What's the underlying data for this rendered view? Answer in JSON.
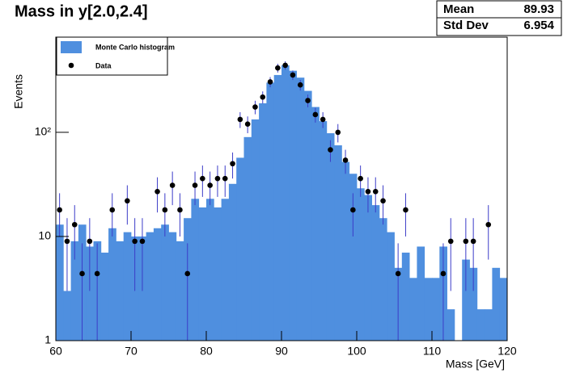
{
  "chart_data": {
    "type": "histogram",
    "title": "Mass in y[2.0,2.4]",
    "xlabel": "Mass [GeV]",
    "ylabel": "Events",
    "log_y": true,
    "xlim": [
      60,
      120
    ],
    "ylim": [
      1,
      820
    ],
    "xticks": [
      60,
      70,
      80,
      90,
      100,
      110,
      120
    ],
    "yticks": [
      1,
      10,
      {
        "value": 100,
        "label": "10²"
      }
    ],
    "legend": "top-left",
    "stats": {
      "rows": [
        [
          "Mean",
          "89.93"
        ],
        [
          "Std Dev",
          "6.954"
        ]
      ]
    },
    "bins": [
      60,
      61,
      62,
      63,
      64,
      65,
      66,
      67,
      68,
      69,
      70,
      71,
      72,
      73,
      74,
      75,
      76,
      77,
      78,
      79,
      80,
      81,
      82,
      83,
      84,
      85,
      86,
      87,
      88,
      89,
      90,
      91,
      92,
      93,
      94,
      95,
      96,
      97,
      98,
      99,
      100,
      101,
      102,
      103,
      104,
      105,
      106,
      107,
      108,
      109,
      110,
      111,
      112,
      113,
      114,
      115,
      116,
      117,
      118,
      119,
      120
    ],
    "series": [
      {
        "name": "Monte Carlo histogram",
        "color": "#4f8fdf",
        "values": [
          13,
          3,
          9,
          13,
          8,
          9,
          7,
          12,
          9,
          11,
          10,
          10,
          11,
          12,
          13,
          11,
          9,
          15,
          23,
          19,
          23,
          19,
          23,
          32,
          57,
          90,
          133,
          190,
          300,
          355,
          440,
          390,
          335,
          250,
          175,
          128,
          98,
          75,
          52,
          40,
          29,
          25,
          20,
          15,
          11,
          5,
          7,
          4,
          8,
          4,
          4,
          8,
          2,
          null,
          6,
          5,
          2,
          2,
          5,
          4
        ]
      },
      {
        "name": "Data",
        "color": "#000000",
        "error_color": "#3c3cc8",
        "x": [
          60.5,
          61.5,
          62.5,
          63.5,
          64.5,
          65.5,
          67.5,
          69.5,
          70.5,
          71.5,
          73.5,
          74.5,
          75.5,
          76.5,
          77.5,
          78.5,
          79.5,
          80.5,
          81.5,
          82.5,
          83.5,
          84.5,
          85.5,
          86.5,
          87.5,
          88.5,
          89.5,
          90.5,
          91.5,
          92.5,
          93.5,
          94.5,
          95.5,
          96.5,
          97.5,
          98.5,
          99.5,
          100.5,
          101.5,
          102.5,
          103.5,
          105.5,
          106.5,
          111.5,
          112.5,
          114.5,
          115.5,
          117.5
        ],
        "values": [
          18,
          9,
          13,
          4.4,
          9,
          4.4,
          18,
          22,
          9,
          9,
          27,
          18,
          31,
          18,
          4.4,
          31,
          36,
          31,
          36,
          36,
          50,
          133,
          120,
          175,
          218,
          305,
          415,
          440,
          355,
          285,
          202,
          148,
          133,
          68,
          100,
          54,
          18,
          36,
          27,
          27,
          22,
          4.4,
          18,
          4.4,
          9,
          9,
          9,
          13
        ],
        "errors": [
          8,
          6,
          7,
          4.2,
          6,
          4.2,
          8,
          9,
          6,
          6,
          10,
          8,
          11,
          8,
          4.2,
          11,
          12,
          11,
          12,
          12,
          14,
          23,
          22,
          26,
          29,
          34,
          40,
          41,
          37,
          33,
          28,
          24,
          23,
          16,
          20,
          14,
          8,
          12,
          10,
          10,
          9,
          4.2,
          8,
          4.2,
          6,
          6,
          6,
          7
        ]
      }
    ]
  }
}
